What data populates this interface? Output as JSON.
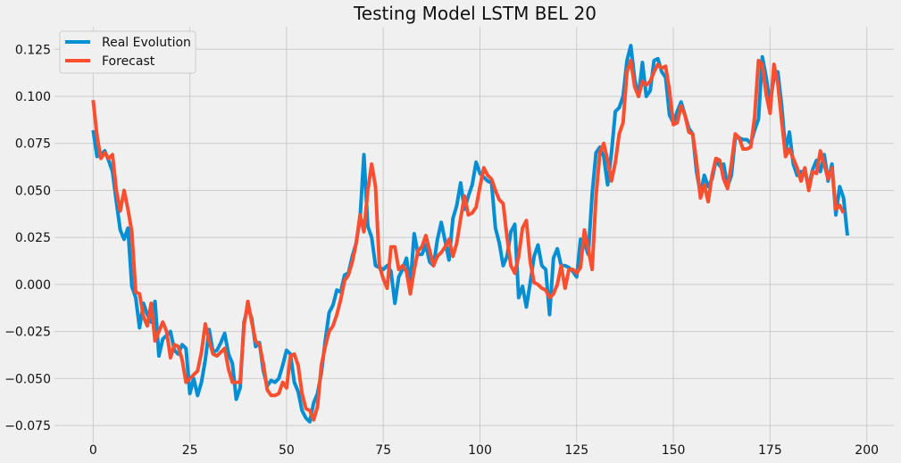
{
  "chart_data": {
    "type": "line",
    "title": "Testing Model LSTM BEL 20",
    "xlabel": "",
    "ylabel": "",
    "xlim": [
      -10,
      207
    ],
    "ylim": [
      -0.084,
      0.137
    ],
    "x_ticks": [
      0,
      25,
      50,
      75,
      100,
      125,
      150,
      175,
      200
    ],
    "x_tick_labels": [
      "0",
      "25",
      "50",
      "75",
      "100",
      "125",
      "150",
      "175",
      "200"
    ],
    "y_ticks": [
      -0.075,
      -0.05,
      -0.025,
      0.0,
      0.025,
      0.05,
      0.075,
      0.1,
      0.125
    ],
    "y_tick_labels": [
      "−0.075",
      "−0.050",
      "−0.025",
      "0.000",
      "0.025",
      "0.050",
      "0.075",
      "0.100",
      "0.125"
    ],
    "grid": true,
    "legend_position": "top-left",
    "series": [
      {
        "name": "Real Evolution",
        "color": "#008fd5",
        "values": [
          0.082,
          0.068,
          0.069,
          0.071,
          0.066,
          0.06,
          0.044,
          0.029,
          0.024,
          0.03,
          -0.001,
          -0.007,
          -0.023,
          -0.01,
          -0.016,
          -0.02,
          -0.009,
          -0.038,
          -0.029,
          -0.027,
          -0.025,
          -0.035,
          -0.037,
          -0.032,
          -0.034,
          -0.058,
          -0.05,
          -0.059,
          -0.052,
          -0.04,
          -0.024,
          -0.036,
          -0.035,
          -0.031,
          -0.026,
          -0.037,
          -0.042,
          -0.061,
          -0.055,
          -0.02,
          -0.012,
          -0.018,
          -0.033,
          -0.031,
          -0.046,
          -0.054,
          -0.051,
          -0.052,
          -0.05,
          -0.043,
          -0.035,
          -0.037,
          -0.052,
          -0.057,
          -0.067,
          -0.071,
          -0.073,
          -0.063,
          -0.058,
          -0.047,
          -0.03,
          -0.015,
          -0.011,
          -0.003,
          -0.004,
          0.005,
          0.006,
          0.015,
          0.022,
          0.035,
          0.069,
          0.031,
          0.025,
          0.01,
          0.009,
          0.008,
          0.01,
          0.007,
          -0.01,
          0.004,
          0.008,
          0.014,
          0.0,
          0.027,
          0.016,
          0.016,
          0.021,
          0.012,
          0.01,
          0.024,
          0.033,
          0.023,
          0.013,
          0.035,
          0.042,
          0.054,
          0.04,
          0.047,
          0.053,
          0.065,
          0.059,
          0.057,
          0.055,
          0.054,
          0.03,
          0.022,
          0.01,
          0.015,
          0.028,
          0.032,
          -0.007,
          -0.001,
          -0.012,
          0.001,
          0.015,
          0.021,
          0.01,
          0.008,
          -0.016,
          0.014,
          0.019,
          0.01,
          0.01,
          0.009,
          0.007,
          0.004,
          0.024,
          0.022,
          0.016,
          0.048,
          0.07,
          0.073,
          0.068,
          0.053,
          0.07,
          0.092,
          0.094,
          0.1,
          0.119,
          0.127,
          0.109,
          0.1,
          0.118,
          0.1,
          0.103,
          0.119,
          0.12,
          0.113,
          0.11,
          0.09,
          0.086,
          0.092,
          0.097,
          0.09,
          0.083,
          0.08,
          0.06,
          0.048,
          0.058,
          0.052,
          0.056,
          0.066,
          0.063,
          0.064,
          0.052,
          0.058,
          0.078,
          0.078,
          0.077,
          0.077,
          0.075,
          0.082,
          0.088,
          0.121,
          0.11,
          0.096,
          0.11,
          0.113,
          0.095,
          0.071,
          0.081,
          0.064,
          0.058,
          0.06,
          0.06,
          0.052,
          0.061,
          0.066,
          0.06,
          0.069,
          0.055,
          0.064,
          0.037,
          0.052,
          0.046,
          0.026
        ]
      },
      {
        "name": "Forecast",
        "color": "#fc4f30",
        "values": [
          0.098,
          0.079,
          0.067,
          0.07,
          0.067,
          0.069,
          0.05,
          0.039,
          0.05,
          0.04,
          0.028,
          -0.004,
          -0.005,
          -0.017,
          -0.022,
          -0.01,
          -0.03,
          -0.025,
          -0.02,
          -0.025,
          -0.039,
          -0.032,
          -0.033,
          -0.04,
          -0.052,
          -0.05,
          -0.048,
          -0.046,
          -0.036,
          -0.021,
          -0.03,
          -0.037,
          -0.038,
          -0.036,
          -0.034,
          -0.045,
          -0.052,
          -0.052,
          -0.052,
          -0.022,
          -0.009,
          -0.02,
          -0.03,
          -0.032,
          -0.042,
          -0.056,
          -0.059,
          -0.059,
          -0.058,
          -0.052,
          -0.055,
          -0.038,
          -0.037,
          -0.043,
          -0.058,
          -0.066,
          -0.067,
          -0.072,
          -0.065,
          -0.043,
          -0.033,
          -0.025,
          -0.022,
          -0.016,
          -0.008,
          0.002,
          0.005,
          0.012,
          0.022,
          0.037,
          0.028,
          0.05,
          0.064,
          0.052,
          0.01,
          0.003,
          -0.002,
          0.02,
          0.02,
          0.008,
          0.01,
          0.007,
          -0.005,
          0.008,
          0.018,
          0.02,
          0.026,
          0.018,
          0.01,
          0.015,
          0.017,
          0.02,
          0.024,
          0.015,
          0.022,
          0.035,
          0.047,
          0.037,
          0.038,
          0.041,
          0.052,
          0.062,
          0.058,
          0.056,
          0.05,
          0.045,
          0.043,
          0.025,
          0.01,
          0.006,
          0.015,
          0.03,
          0.034,
          0.012,
          0.001,
          0.0,
          -0.002,
          -0.003,
          -0.007,
          -0.005,
          0.0,
          0.01,
          -0.002,
          0.008,
          0.008,
          0.006,
          0.009,
          0.029,
          0.019,
          0.008,
          0.047,
          0.07,
          0.075,
          0.066,
          0.055,
          0.065,
          0.08,
          0.086,
          0.113,
          0.119,
          0.105,
          0.1,
          0.108,
          0.106,
          0.108,
          0.113,
          0.117,
          0.115,
          0.116,
          0.103,
          0.085,
          0.086,
          0.095,
          0.09,
          0.081,
          0.08,
          0.065,
          0.046,
          0.053,
          0.044,
          0.058,
          0.067,
          0.066,
          0.056,
          0.051,
          0.064,
          0.08,
          0.078,
          0.072,
          0.072,
          0.073,
          0.089,
          0.119,
          0.117,
          0.101,
          0.091,
          0.117,
          0.107,
          0.087,
          0.068,
          0.072,
          0.067,
          0.062,
          0.055,
          0.062,
          0.05,
          0.06,
          0.059,
          0.071,
          0.064,
          0.056,
          0.062,
          0.04,
          0.042,
          0.038
        ]
      }
    ]
  }
}
